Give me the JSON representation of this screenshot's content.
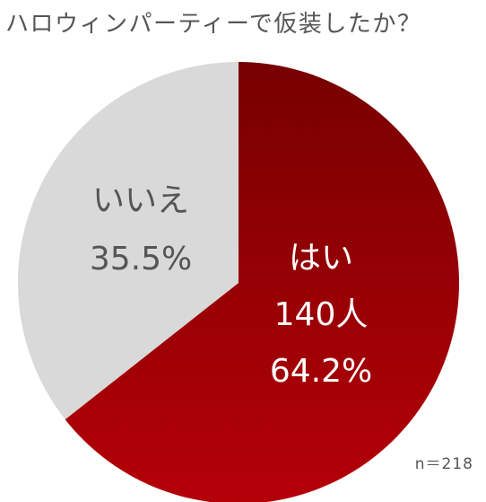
{
  "chart_data": {
    "type": "pie",
    "title": "ハロウィンパーティーで仮装したか？",
    "slices": [
      {
        "label": "はい",
        "count_label": "140人",
        "value": 64.2,
        "value_label": "64.2%",
        "color": "#b50008",
        "color_dark": "#770000",
        "text_color": "#ffffff"
      },
      {
        "label": "いいえ",
        "value": 35.5,
        "value_label": "35.5%",
        "color": "#d9d9d9",
        "text_color": "#555555"
      }
    ],
    "note": "n＝218"
  }
}
